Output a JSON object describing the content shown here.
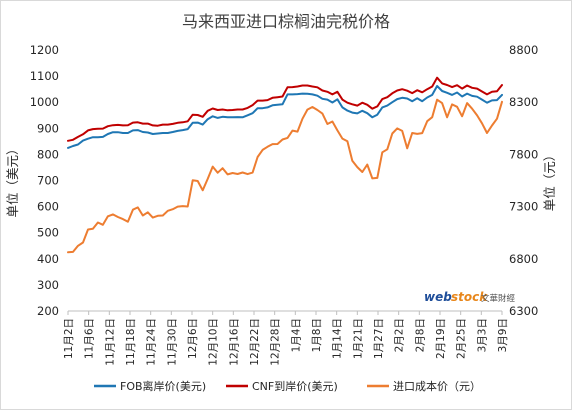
{
  "chart_data": {
    "type": "line",
    "title": "马来西亚进口棕榈油完税价格",
    "ylabel_left": "单位（美元）",
    "ylabel_right": "单位（元）",
    "ylim_left": [
      200,
      1200
    ],
    "ylim_right": [
      6300,
      8800
    ],
    "yticks_left": [
      200,
      300,
      400,
      500,
      600,
      700,
      800,
      900,
      1000,
      1100,
      1200
    ],
    "yticks_right": [
      6300,
      6800,
      7300,
      7800,
      8300,
      8800
    ],
    "x_tick_labels": [
      "11月2日",
      "11月6日",
      "11月12日",
      "11月18日",
      "11月24日",
      "11月30日",
      "12月6日",
      "12月10日",
      "12月16日",
      "12月22日",
      "12月28日",
      "1月4日",
      "1月8日",
      "1月14日",
      "1月21日",
      "1月27日",
      "2月2日",
      "2月8日",
      "2月19日",
      "2月25日",
      "3月3日",
      "3月9日"
    ],
    "grid": false,
    "legend_position": "bottom",
    "series": [
      {
        "name": "FOB离岸价(美元)",
        "axis": "left",
        "color": "#1f77b4",
        "values": [
          825,
          832,
          838,
          853,
          860,
          866,
          866,
          867,
          878,
          885,
          885,
          882,
          882,
          892,
          893,
          886,
          884,
          878,
          880,
          882,
          882,
          886,
          890,
          893,
          897,
          921,
          922,
          914,
          935,
          946,
          940,
          944,
          942,
          942,
          943,
          942,
          950,
          958,
          977,
          977,
          980,
          988,
          990,
          992,
          1030,
          1030,
          1031,
          1033,
          1032,
          1030,
          1025,
          1013,
          1010,
          999,
          1011,
          980,
          968,
          960,
          957,
          967,
          958,
          942,
          952,
          980,
          987,
          1000,
          1012,
          1017,
          1014,
          1004,
          1015,
          1004,
          1018,
          1028,
          1062,
          1043,
          1036,
          1028,
          1037,
          1022,
          1033,
          1024,
          1021,
          1010,
          998,
          1007,
          1008,
          1028
        ]
      },
      {
        "name": "CNF到岸价(美元)",
        "axis": "left",
        "color": "#c00000",
        "values": [
          852,
          856,
          867,
          877,
          892,
          897,
          898,
          899,
          908,
          912,
          913,
          911,
          912,
          922,
          923,
          918,
          918,
          911,
          910,
          914,
          914,
          917,
          921,
          923,
          927,
          952,
          951,
          944,
          967,
          976,
          970,
          972,
          969,
          970,
          972,
          972,
          978,
          989,
          1006,
          1006,
          1008,
          1017,
          1019,
          1022,
          1057,
          1058,
          1060,
          1064,
          1064,
          1060,
          1057,
          1045,
          1040,
          1030,
          1040,
          1010,
          998,
          992,
          987,
          998,
          990,
          975,
          984,
          1012,
          1019,
          1034,
          1045,
          1050,
          1044,
          1035,
          1046,
          1038,
          1050,
          1060,
          1094,
          1072,
          1066,
          1058,
          1065,
          1052,
          1064,
          1055,
          1052,
          1041,
          1030,
          1040,
          1042,
          1066
        ]
      },
      {
        "name": "进口成本价（元）",
        "axis": "right",
        "color": "#ed7d31",
        "values": [
          6862,
          6866,
          6925,
          6956,
          7081,
          7087,
          7148,
          7126,
          7207,
          7225,
          7200,
          7180,
          7155,
          7270,
          7292,
          7215,
          7245,
          7195,
          7212,
          7215,
          7260,
          7275,
          7300,
          7305,
          7301,
          7552,
          7545,
          7456,
          7565,
          7683,
          7625,
          7668,
          7608,
          7622,
          7612,
          7627,
          7611,
          7626,
          7775,
          7843,
          7873,
          7899,
          7900,
          7943,
          7958,
          8028,
          8018,
          8142,
          8229,
          8254,
          8225,
          8191,
          8091,
          8115,
          8030,
          7951,
          7926,
          7740,
          7678,
          7631,
          7702,
          7570,
          7575,
          7820,
          7849,
          8000,
          8049,
          8025,
          7858,
          8005,
          7996,
          8004,
          8118,
          8156,
          8324,
          8291,
          8155,
          8279,
          8256,
          8165,
          8291,
          8238,
          8174,
          8098,
          8005,
          8077,
          8142,
          8304
        ]
      }
    ]
  },
  "watermark": {
    "text_web": "web",
    "text_stock": "stock",
    "text_cn": "文華財經"
  }
}
